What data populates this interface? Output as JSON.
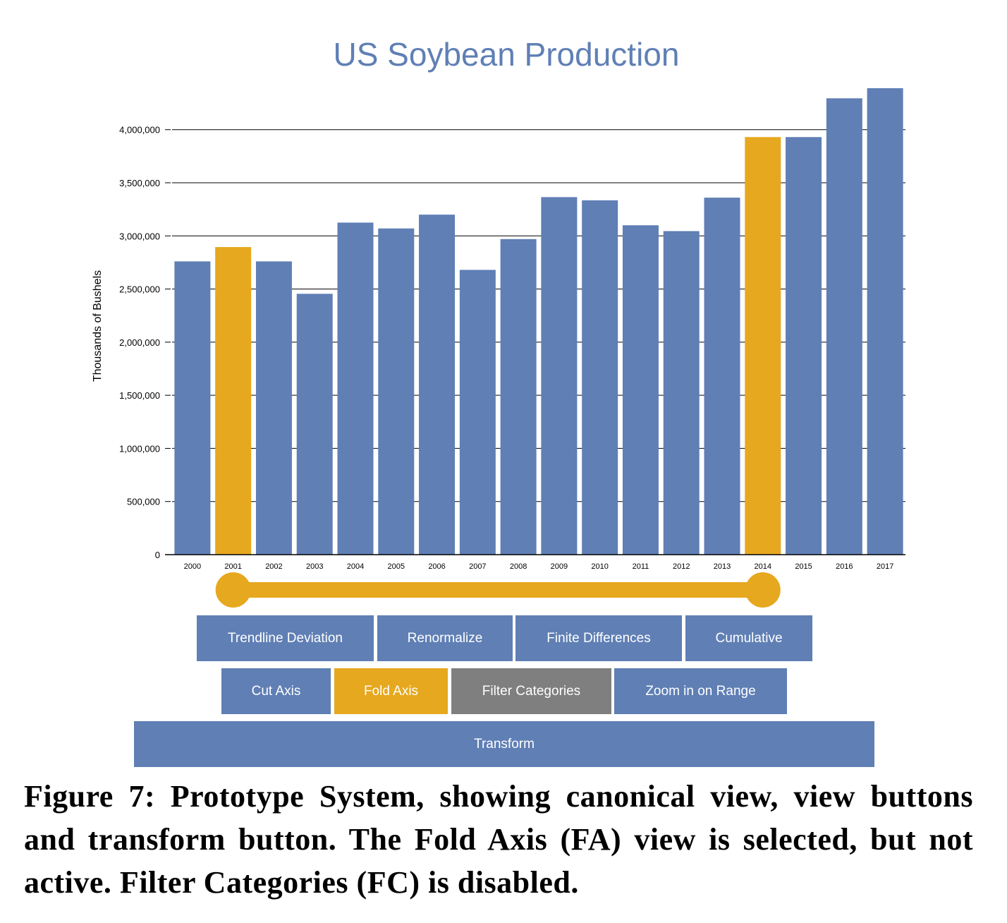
{
  "chart_data": {
    "type": "bar",
    "title": "US Soybean Production",
    "ylabel": "Thousands of Bushels",
    "xlabel": "",
    "categories": [
      "2000",
      "2001",
      "2002",
      "2003",
      "2004",
      "2005",
      "2006",
      "2007",
      "2008",
      "2009",
      "2010",
      "2011",
      "2012",
      "2013",
      "2014",
      "2015",
      "2016",
      "2017"
    ],
    "values": [
      2760000,
      2895000,
      2760000,
      2455000,
      3125000,
      3070000,
      3200000,
      2680000,
      2970000,
      3365000,
      3335000,
      3100000,
      3045000,
      3360000,
      3930000,
      3930000,
      4295000,
      4390000
    ],
    "highlighted": [
      "2001",
      "2014"
    ],
    "ylim": [
      0,
      4390000
    ],
    "yticks": [
      0,
      500000,
      1000000,
      1500000,
      2000000,
      2500000,
      3000000,
      3500000,
      4000000
    ],
    "ytick_labels": [
      "0",
      "500,000",
      "1,000,000",
      "1,500,000",
      "2,000,000",
      "2,500,000",
      "3,000,000",
      "3,500,000",
      "4,000,000"
    ],
    "grid": true,
    "colors": {
      "bar": "#5f7fb5",
      "highlight": "#e6a81e",
      "title": "#5f7fb5",
      "axis": "#000000"
    }
  },
  "range_slider": {
    "start": "2001",
    "end": "2014",
    "color": "#e6a81e"
  },
  "view_buttons": {
    "row1": [
      {
        "label": "Trendline Deviation",
        "state": "default"
      },
      {
        "label": "Renormalize",
        "state": "default"
      },
      {
        "label": "Finite Differences",
        "state": "default"
      },
      {
        "label": "Cumulative",
        "state": "default"
      }
    ],
    "row2": [
      {
        "label": "Cut Axis",
        "state": "default"
      },
      {
        "label": "Fold Axis",
        "state": "selected"
      },
      {
        "label": "Filter Categories",
        "state": "disabled"
      },
      {
        "label": "Zoom in on Range",
        "state": "default"
      }
    ]
  },
  "transform_button": {
    "label": "Transform"
  },
  "button_colors": {
    "default": "#5f7fb5",
    "selected": "#e6a81e",
    "disabled": "#7f7f7f"
  },
  "caption": "Figure 7: Prototype System, showing canonical view, view buttons and transform button. The Fold Axis (FA) view is selected, but not active. Filter Categories (FC) is disabled."
}
